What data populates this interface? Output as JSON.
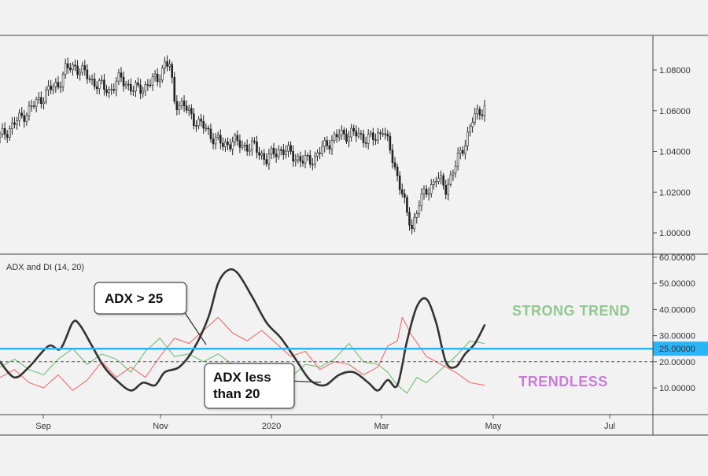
{
  "chart_data": [
    {
      "type": "candlestick",
      "pane": "price",
      "title": "",
      "y_ticks": [
        "1.08000",
        "1.06000",
        "1.04000",
        "1.02000",
        "1.00000"
      ],
      "ylim": [
        0.99,
        1.09
      ],
      "x_ticks": [
        "Sep",
        "Nov",
        "2020",
        "Mar",
        "May",
        "Jul"
      ],
      "approx_close_path": [
        [
          0,
          1.047
        ],
        [
          8,
          1.056
        ],
        [
          16,
          1.065
        ],
        [
          20,
          1.07
        ],
        [
          24,
          1.073
        ],
        [
          27,
          1.08
        ],
        [
          31,
          1.082
        ],
        [
          35,
          1.078
        ],
        [
          40,
          1.073
        ],
        [
          45,
          1.07
        ],
        [
          50,
          1.076
        ],
        [
          55,
          1.07
        ],
        [
          60,
          1.072
        ],
        [
          65,
          1.076
        ],
        [
          68,
          1.083
        ],
        [
          70,
          1.082
        ],
        [
          72,
          1.065
        ],
        [
          76,
          1.062
        ],
        [
          80,
          1.056
        ],
        [
          84,
          1.052
        ],
        [
          88,
          1.047
        ],
        [
          92,
          1.043
        ],
        [
          96,
          1.045
        ],
        [
          100,
          1.043
        ],
        [
          105,
          1.042
        ],
        [
          110,
          1.036
        ],
        [
          115,
          1.041
        ],
        [
          120,
          1.039
        ],
        [
          125,
          1.035
        ],
        [
          130,
          1.037
        ],
        [
          135,
          1.044
        ],
        [
          140,
          1.048
        ],
        [
          145,
          1.049
        ],
        [
          150,
          1.047
        ],
        [
          155,
          1.046
        ],
        [
          158,
          1.052
        ],
        [
          162,
          1.036
        ],
        [
          166,
          1.02
        ],
        [
          168,
          1.008
        ],
        [
          170,
          1.003
        ],
        [
          173,
          1.015
        ],
        [
          176,
          1.02
        ],
        [
          180,
          1.027
        ],
        [
          184,
          1.022
        ],
        [
          188,
          1.033
        ],
        [
          192,
          1.045
        ],
        [
          195,
          1.055
        ],
        [
          198,
          1.06
        ],
        [
          200,
          1.062
        ]
      ]
    },
    {
      "type": "line",
      "pane": "indicator",
      "title": "ADX and DI (14, 20)",
      "y_ticks": [
        "60.00000",
        "50.00000",
        "40.00000",
        "30.00000",
        "20.00000",
        "10.00000"
      ],
      "ylim": [
        0,
        60
      ],
      "threshold_highlighted": {
        "value": 25,
        "label": "25.00000",
        "color": "#29b6f6"
      },
      "threshold_dashed": {
        "value": 20
      },
      "series": [
        {
          "color": "#333333",
          "points": [
            [
              0,
              20
            ],
            [
              6,
              14
            ],
            [
              12,
              18
            ],
            [
              20,
              26
            ],
            [
              25,
              25
            ],
            [
              30,
              35
            ],
            [
              33,
              34
            ],
            [
              38,
              26
            ],
            [
              43,
              18
            ],
            [
              48,
              13
            ],
            [
              54,
              9
            ],
            [
              59,
              12
            ],
            [
              64,
              11
            ],
            [
              68,
              16
            ],
            [
              74,
              18
            ],
            [
              80,
              25
            ],
            [
              86,
              37
            ],
            [
              90,
              50
            ],
            [
              94,
              55
            ],
            [
              98,
              54
            ],
            [
              104,
              45
            ],
            [
              110,
              35
            ],
            [
              116,
              29
            ],
            [
              122,
              21
            ],
            [
              128,
              13
            ],
            [
              134,
              11
            ],
            [
              140,
              15
            ],
            [
              146,
              16
            ],
            [
              152,
              12
            ],
            [
              156,
              9
            ],
            [
              160,
              13
            ],
            [
              164,
              11
            ],
            [
              168,
              28
            ],
            [
              172,
              41
            ],
            [
              176,
              44
            ],
            [
              180,
              35
            ],
            [
              184,
              20
            ],
            [
              188,
              18
            ],
            [
              192,
              23
            ],
            [
              196,
              27
            ],
            [
              200,
              34
            ]
          ]
        },
        {
          "color": "#f26b6b",
          "points": [
            [
              0,
              14
            ],
            [
              6,
              17
            ],
            [
              12,
              12
            ],
            [
              18,
              10
            ],
            [
              24,
              15
            ],
            [
              30,
              9
            ],
            [
              36,
              13
            ],
            [
              42,
              20
            ],
            [
              48,
              14
            ],
            [
              54,
              18
            ],
            [
              60,
              14
            ],
            [
              66,
              22
            ],
            [
              72,
              29
            ],
            [
              78,
              27
            ],
            [
              84,
              32
            ],
            [
              90,
              37
            ],
            [
              96,
              31
            ],
            [
              102,
              28
            ],
            [
              108,
              32
            ],
            [
              114,
              27
            ],
            [
              120,
              22
            ],
            [
              126,
              24
            ],
            [
              132,
              17
            ],
            [
              138,
              20
            ],
            [
              144,
              19
            ],
            [
              150,
              15
            ],
            [
              156,
              18
            ],
            [
              160,
              26
            ],
            [
              164,
              28
            ],
            [
              166,
              37
            ],
            [
              170,
              30
            ],
            [
              176,
              22
            ],
            [
              182,
              19
            ],
            [
              188,
              16
            ],
            [
              194,
              12
            ],
            [
              200,
              11
            ]
          ]
        },
        {
          "color": "#6fbf6f",
          "points": [
            [
              0,
              18
            ],
            [
              6,
              21
            ],
            [
              12,
              17
            ],
            [
              18,
              15
            ],
            [
              24,
              21
            ],
            [
              30,
              25
            ],
            [
              36,
              19
            ],
            [
              42,
              23
            ],
            [
              48,
              21
            ],
            [
              54,
              16
            ],
            [
              60,
              24
            ],
            [
              66,
              29
            ],
            [
              72,
              22
            ],
            [
              78,
              23
            ],
            [
              84,
              20
            ],
            [
              90,
              23
            ],
            [
              96,
              19
            ],
            [
              102,
              17
            ],
            [
              108,
              19
            ],
            [
              114,
              14
            ],
            [
              120,
              14
            ],
            [
              126,
              19
            ],
            [
              132,
              18
            ],
            [
              138,
              21
            ],
            [
              144,
              27
            ],
            [
              150,
              20
            ],
            [
              156,
              19
            ],
            [
              160,
              16
            ],
            [
              164,
              11
            ],
            [
              168,
              8
            ],
            [
              172,
              14
            ],
            [
              176,
              12
            ],
            [
              182,
              17
            ],
            [
              188,
              22
            ],
            [
              194,
              28
            ],
            [
              200,
              27
            ]
          ]
        }
      ],
      "annotations": [
        {
          "text": "ADX > 25"
        },
        {
          "text": "ADX less than 20",
          "lines": [
            "ADX less",
            "than 20"
          ]
        }
      ],
      "zone_labels": [
        {
          "text": "STRONG TREND",
          "color": "#90c890"
        },
        {
          "text": "TRENDLESS",
          "color": "#c77ed6"
        }
      ]
    }
  ]
}
